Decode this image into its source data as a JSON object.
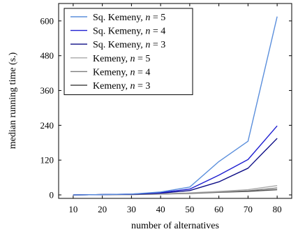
{
  "chart_data": {
    "type": "line",
    "xlabel": "number of alternatives",
    "ylabel": "median running time (s.)",
    "x": [
      10,
      20,
      30,
      40,
      50,
      60,
      70,
      80
    ],
    "xlim": [
      5,
      85
    ],
    "ylim": [
      -12,
      660
    ],
    "xticks": [
      "10",
      "20",
      "30",
      "40",
      "50",
      "60",
      "70",
      "80"
    ],
    "yticks": [
      "0",
      "120",
      "240",
      "360",
      "480",
      "600"
    ],
    "grid": false,
    "legend_position": "top-left",
    "series": [
      {
        "label_main": "Sq. Kemeny, ",
        "label_var": "n",
        "label_tail": " = 5",
        "color": "#5b8fdc",
        "values": [
          0,
          1,
          3,
          10,
          27,
          115,
          185,
          615
        ]
      },
      {
        "label_main": "Sq. Kemeny, ",
        "label_var": "n",
        "label_tail": " = 4",
        "color": "#1f1fd1",
        "values": [
          0,
          1,
          3,
          8,
          20,
          68,
          122,
          238
        ]
      },
      {
        "label_main": "Sq. Kemeny, ",
        "label_var": "n",
        "label_tail": " = 3",
        "color": "#0d0d86",
        "values": [
          0,
          1,
          2,
          6,
          15,
          45,
          92,
          195
        ]
      },
      {
        "label_main": "Kemeny, ",
        "label_var": "n",
        "label_tail": " = 5",
        "color": "#a9a9a9",
        "values": [
          0,
          1,
          2,
          4,
          7,
          12,
          18,
          32
        ]
      },
      {
        "label_main": "Kemeny, ",
        "label_var": "n",
        "label_tail": " = 4",
        "color": "#7c7c7c",
        "values": [
          0,
          1,
          2,
          3,
          6,
          10,
          14,
          24
        ]
      },
      {
        "label_main": "Kemeny, ",
        "label_var": "n",
        "label_tail": " = 3",
        "color": "#4a4a4a",
        "values": [
          0,
          1,
          1,
          3,
          5,
          9,
          12,
          18
        ]
      }
    ]
  }
}
